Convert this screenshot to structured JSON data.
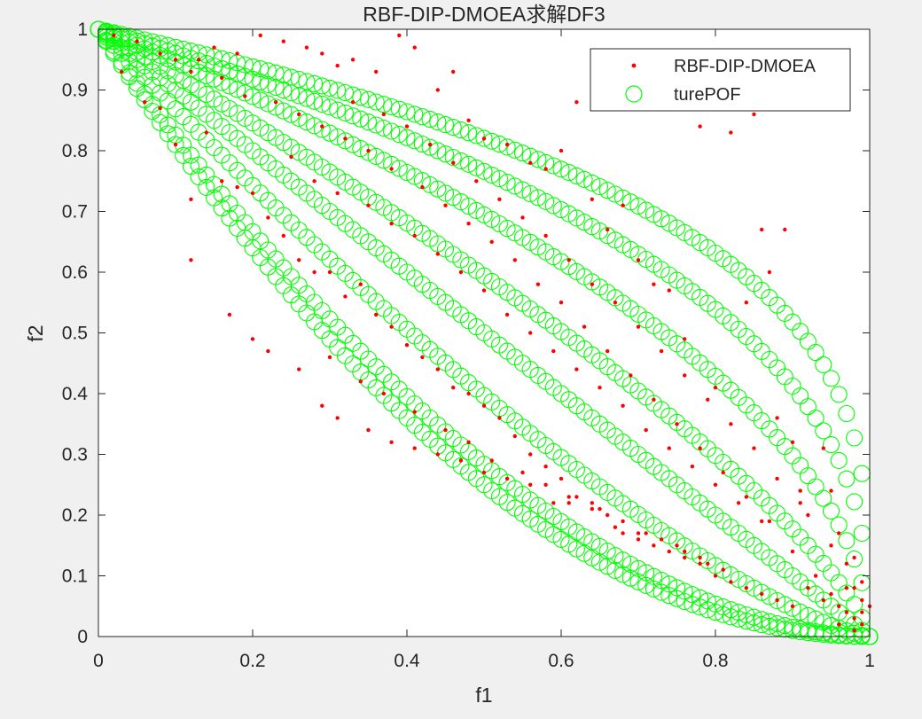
{
  "chart_data": {
    "type": "scatter",
    "title": "RBF-DIP-DMOEA求解DF3",
    "xlabel": "f1",
    "ylabel": "f2",
    "xlim": [
      0,
      1
    ],
    "ylim": [
      0,
      1
    ],
    "xticks": [
      "0",
      "0.2",
      "0.4",
      "0.6",
      "0.8",
      "1"
    ],
    "yticks": [
      "0",
      "0.1",
      "0.2",
      "0.3",
      "0.4",
      "0.5",
      "0.6",
      "0.7",
      "0.8",
      "0.9",
      "1"
    ],
    "grid": false,
    "legend_position": "top-right",
    "series": [
      {
        "name": "RBF-DIP-DMOEA",
        "marker": "dot",
        "color": "#ff0000",
        "points": [
          [
            0.02,
            0.99
          ],
          [
            0.05,
            0.98
          ],
          [
            0.08,
            0.96
          ],
          [
            0.1,
            0.95
          ],
          [
            0.13,
            0.95
          ],
          [
            0.15,
            0.97
          ],
          [
            0.18,
            0.96
          ],
          [
            0.21,
            0.99
          ],
          [
            0.24,
            0.98
          ],
          [
            0.27,
            0.97
          ],
          [
            0.29,
            0.96
          ],
          [
            0.31,
            0.94
          ],
          [
            0.33,
            0.95
          ],
          [
            0.36,
            0.93
          ],
          [
            0.39,
            0.99
          ],
          [
            0.41,
            0.97
          ],
          [
            0.44,
            0.9
          ],
          [
            0.46,
            0.93
          ],
          [
            0.48,
            0.85
          ],
          [
            0.5,
            0.82
          ],
          [
            0.53,
            0.81
          ],
          [
            0.56,
            0.78
          ],
          [
            0.58,
            0.77
          ],
          [
            0.6,
            0.8
          ],
          [
            0.62,
            0.88
          ],
          [
            0.64,
            0.72
          ],
          [
            0.66,
            0.67
          ],
          [
            0.68,
            0.71
          ],
          [
            0.7,
            0.62
          ],
          [
            0.72,
            0.58
          ],
          [
            0.74,
            0.57
          ],
          [
            0.76,
            0.49
          ],
          [
            0.78,
            0.84
          ],
          [
            0.8,
            0.41
          ],
          [
            0.82,
            0.83
          ],
          [
            0.84,
            0.55
          ],
          [
            0.85,
            0.86
          ],
          [
            0.86,
            0.67
          ],
          [
            0.87,
            0.6
          ],
          [
            0.88,
            0.36
          ],
          [
            0.89,
            0.67
          ],
          [
            0.9,
            0.32
          ],
          [
            0.91,
            0.24
          ],
          [
            0.92,
            0.2
          ],
          [
            0.93,
            0.1
          ],
          [
            0.94,
            0.31
          ],
          [
            0.95,
            0.24
          ],
          [
            0.96,
            0.17
          ],
          [
            0.97,
            0.12
          ],
          [
            0.98,
            0.08
          ],
          [
            0.99,
            0.06
          ],
          [
            1.0,
            0.05
          ],
          [
            0.98,
            0.01
          ],
          [
            0.96,
            0.02
          ],
          [
            0.95,
            0.15
          ],
          [
            0.03,
            0.93
          ],
          [
            0.06,
            0.88
          ],
          [
            0.08,
            0.87
          ],
          [
            0.1,
            0.81
          ],
          [
            0.12,
            0.72
          ],
          [
            0.14,
            0.83
          ],
          [
            0.16,
            0.75
          ],
          [
            0.18,
            0.74
          ],
          [
            0.2,
            0.73
          ],
          [
            0.22,
            0.69
          ],
          [
            0.24,
            0.66
          ],
          [
            0.26,
            0.62
          ],
          [
            0.28,
            0.6
          ],
          [
            0.3,
            0.6
          ],
          [
            0.32,
            0.56
          ],
          [
            0.34,
            0.58
          ],
          [
            0.36,
            0.53
          ],
          [
            0.38,
            0.51
          ],
          [
            0.4,
            0.48
          ],
          [
            0.42,
            0.46
          ],
          [
            0.44,
            0.44
          ],
          [
            0.46,
            0.41
          ],
          [
            0.48,
            0.4
          ],
          [
            0.5,
            0.38
          ],
          [
            0.52,
            0.36
          ],
          [
            0.54,
            0.33
          ],
          [
            0.56,
            0.3
          ],
          [
            0.58,
            0.28
          ],
          [
            0.6,
            0.26
          ],
          [
            0.62,
            0.23
          ],
          [
            0.64,
            0.22
          ],
          [
            0.66,
            0.2
          ],
          [
            0.68,
            0.17
          ],
          [
            0.7,
            0.16
          ],
          [
            0.72,
            0.15
          ],
          [
            0.74,
            0.14
          ],
          [
            0.76,
            0.13
          ],
          [
            0.78,
            0.12
          ],
          [
            0.8,
            0.1
          ],
          [
            0.82,
            0.09
          ],
          [
            0.84,
            0.08
          ],
          [
            0.86,
            0.07
          ],
          [
            0.88,
            0.06
          ],
          [
            0.9,
            0.05
          ],
          [
            0.12,
            0.62
          ],
          [
            0.17,
            0.53
          ],
          [
            0.2,
            0.49
          ],
          [
            0.22,
            0.47
          ],
          [
            0.26,
            0.44
          ],
          [
            0.29,
            0.38
          ],
          [
            0.31,
            0.36
          ],
          [
            0.35,
            0.34
          ],
          [
            0.38,
            0.32
          ],
          [
            0.41,
            0.31
          ],
          [
            0.44,
            0.3
          ],
          [
            0.47,
            0.29
          ],
          [
            0.5,
            0.27
          ],
          [
            0.53,
            0.26
          ],
          [
            0.56,
            0.25
          ],
          [
            0.59,
            0.22
          ],
          [
            0.61,
            0.22
          ],
          [
            0.64,
            0.21
          ],
          [
            0.67,
            0.18
          ],
          [
            0.7,
            0.17
          ],
          [
            0.73,
            0.16
          ],
          [
            0.76,
            0.14
          ],
          [
            0.79,
            0.12
          ],
          [
            0.25,
            0.79
          ],
          [
            0.28,
            0.75
          ],
          [
            0.31,
            0.73
          ],
          [
            0.35,
            0.71
          ],
          [
            0.38,
            0.68
          ],
          [
            0.41,
            0.66
          ],
          [
            0.44,
            0.63
          ],
          [
            0.47,
            0.6
          ],
          [
            0.5,
            0.57
          ],
          [
            0.53,
            0.53
          ],
          [
            0.56,
            0.5
          ],
          [
            0.59,
            0.47
          ],
          [
            0.62,
            0.44
          ],
          [
            0.65,
            0.41
          ],
          [
            0.68,
            0.38
          ],
          [
            0.71,
            0.34
          ],
          [
            0.74,
            0.31
          ],
          [
            0.77,
            0.28
          ],
          [
            0.8,
            0.25
          ],
          [
            0.83,
            0.22
          ],
          [
            0.86,
            0.19
          ],
          [
            0.33,
            0.88
          ],
          [
            0.37,
            0.86
          ],
          [
            0.4,
            0.84
          ],
          [
            0.43,
            0.81
          ],
          [
            0.46,
            0.78
          ],
          [
            0.49,
            0.75
          ],
          [
            0.52,
            0.72
          ],
          [
            0.55,
            0.69
          ],
          [
            0.58,
            0.66
          ],
          [
            0.61,
            0.62
          ],
          [
            0.64,
            0.58
          ],
          [
            0.67,
            0.55
          ],
          [
            0.7,
            0.51
          ],
          [
            0.73,
            0.47
          ],
          [
            0.76,
            0.43
          ],
          [
            0.79,
            0.39
          ],
          [
            0.82,
            0.35
          ],
          [
            0.85,
            0.31
          ],
          [
            0.88,
            0.26
          ],
          [
            0.91,
            0.22
          ],
          [
            0.12,
            0.93
          ],
          [
            0.16,
            0.92
          ],
          [
            0.19,
            0.89
          ],
          [
            0.23,
            0.88
          ],
          [
            0.26,
            0.86
          ],
          [
            0.29,
            0.84
          ],
          [
            0.32,
            0.82
          ],
          [
            0.35,
            0.8
          ],
          [
            0.38,
            0.77
          ],
          [
            0.42,
            0.74
          ],
          [
            0.45,
            0.71
          ],
          [
            0.48,
            0.68
          ],
          [
            0.51,
            0.65
          ],
          [
            0.54,
            0.62
          ],
          [
            0.57,
            0.58
          ],
          [
            0.6,
            0.55
          ],
          [
            0.63,
            0.51
          ],
          [
            0.66,
            0.47
          ],
          [
            0.69,
            0.43
          ],
          [
            0.72,
            0.39
          ],
          [
            0.75,
            0.35
          ],
          [
            0.78,
            0.31
          ],
          [
            0.81,
            0.27
          ],
          [
            0.84,
            0.23
          ],
          [
            0.87,
            0.19
          ],
          [
            0.9,
            0.14
          ],
          [
            0.3,
            0.46
          ],
          [
            0.34,
            0.42
          ],
          [
            0.37,
            0.4
          ],
          [
            0.41,
            0.37
          ],
          [
            0.45,
            0.34
          ],
          [
            0.48,
            0.32
          ],
          [
            0.51,
            0.29
          ],
          [
            0.55,
            0.27
          ],
          [
            0.58,
            0.25
          ],
          [
            0.61,
            0.23
          ],
          [
            0.65,
            0.21
          ],
          [
            0.68,
            0.19
          ],
          [
            0.71,
            0.17
          ],
          [
            0.75,
            0.15
          ],
          [
            0.78,
            0.13
          ],
          [
            0.81,
            0.11
          ],
          [
            0.92,
            0.08
          ],
          [
            0.94,
            0.06
          ],
          [
            0.95,
            0.07
          ],
          [
            0.96,
            0.05
          ],
          [
            0.97,
            0.04
          ],
          [
            0.97,
            0.08
          ],
          [
            0.98,
            0.03
          ],
          [
            0.99,
            0.02
          ],
          [
            0.99,
            0.09
          ],
          [
            0.98,
            0.13
          ],
          [
            0.99,
            0.04
          ]
        ]
      },
      {
        "name": "turePOF",
        "marker": "circle",
        "color": "#00ff00"
      }
    ]
  }
}
